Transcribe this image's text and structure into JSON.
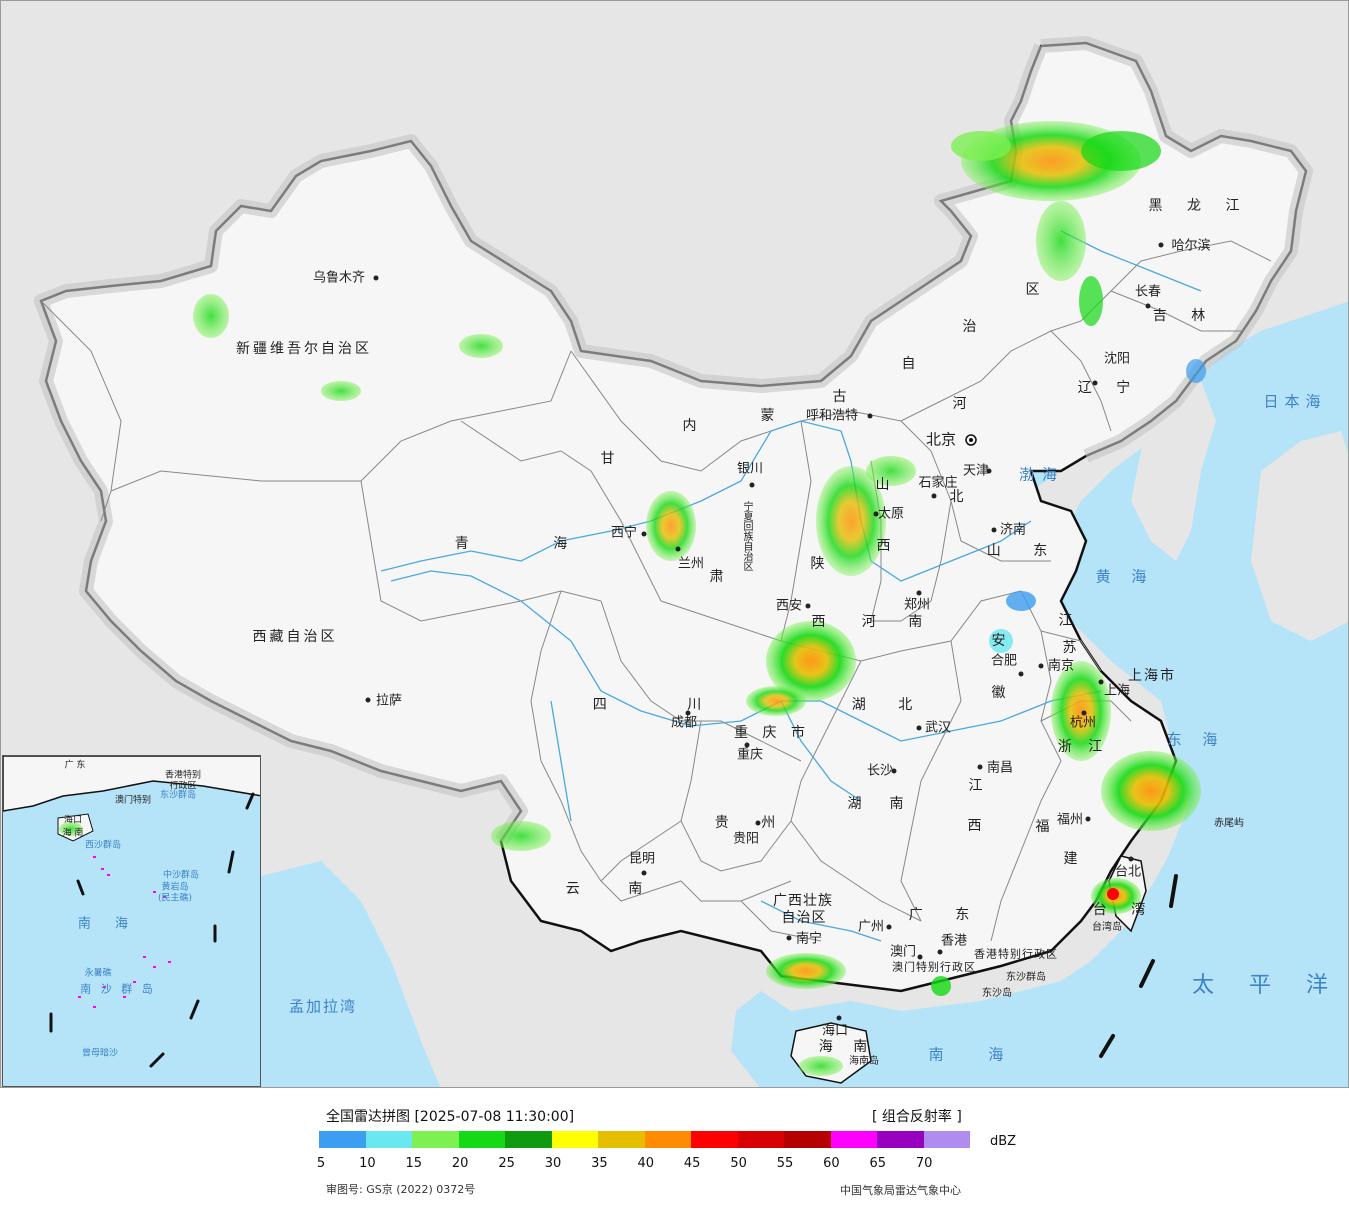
{
  "colors": {
    "foreign_land": "#e6e6e6",
    "china_land": "#f6f6f6",
    "sea": "#b5e3f8",
    "river": "#4aa8e0",
    "border": "#111111",
    "province_border": "#888888"
  },
  "map": {
    "provinces": {
      "xinjiang": "新疆维吾尔自治区",
      "xizang": "西藏自治区",
      "qinghai": "青 海",
      "gansu": "甘",
      "neimenggu_1": "内",
      "neimenggu_2": "蒙",
      "neimenggu_3": "古",
      "neimenggu_4": "自",
      "neimenggu_5": "治",
      "neimenggu_6": "区",
      "heilongjiang": "黑 龙 江",
      "jilin": "吉 林",
      "liaoning": "辽 宁",
      "hebei_1": "河",
      "hebei_2": "北",
      "shanxi_1": "山",
      "shanxi_2": "西",
      "shaanxi_1": "陕",
      "shaanxi_2": "西",
      "shandong": "山 东",
      "henan": "河 南",
      "jiangsu_1": "江",
      "jiangsu_2": "苏",
      "anhui_1": "安",
      "anhui_2": "徽",
      "hubei": "湖 北",
      "hunan_1": "湖",
      "hunan_2": "南",
      "sichuan": "四 川",
      "chongqing": "重 庆 市",
      "guizhou": "贵 州",
      "yunnan": "云 南",
      "guangxi_1": "广西壮族",
      "guangxi_2": "自治区",
      "guangdong": "广 东",
      "jiangxi_1": "江",
      "jiangxi_2": "西",
      "fujian_1": "福",
      "fujian_2": "建",
      "zhejiang": "浙 江",
      "shanghai": "上海市",
      "taiwan": "台 湾",
      "hainan": "海 南",
      "ningxia": "宁夏回族自治区",
      "ningxia_short": "宁",
      "hongkong": "香港特别行政区",
      "macau": "澳门特别行政区",
      "gansu_2": "肃"
    },
    "cities": {
      "urumqi": "乌鲁木齐",
      "lhasa": "拉萨",
      "xining": "西宁",
      "lanzhou": "兰州",
      "yinchuan": "银川",
      "hohhot": "呼和浩特",
      "beijing": "北京",
      "tianjin": "天津",
      "shijiazhuang": "石家庄",
      "taiyuan": "太原",
      "jinan": "济南",
      "zhengzhou": "郑州",
      "xian": "西安",
      "hefei": "合肥",
      "nanjing": "南京",
      "shanghai": "上海",
      "hangzhou": "杭州",
      "wuhan": "武汉",
      "chengdu": "成都",
      "chongqing": "重庆",
      "changsha": "长沙",
      "nanchang": "南昌",
      "fuzhou": "福州",
      "taipei": "台北",
      "guiyang": "贵阳",
      "kunming": "昆明",
      "nanning": "南宁",
      "guangzhou": "广州",
      "hongkong": "香港",
      "macau": "澳门",
      "haikou": "海口",
      "shenyang": "沈阳",
      "changchun": "长春",
      "harbin": "哈尔滨"
    },
    "seas": {
      "bohai": "渤海",
      "huanghai": "黄 海",
      "donghai": "东 海",
      "nanhai": "南 海",
      "taipingyang": "太 平 洋",
      "ribenhai": "日本海",
      "mengjialawan": "孟加拉湾"
    },
    "islands": {
      "taiwan_dao": "台湾岛",
      "hainan_dao": "海南岛",
      "chiweiyu": "赤尾屿",
      "dongsha_qundao": "东沙群岛",
      "dongsha_dao": "东沙岛"
    },
    "inset": {
      "nanhai": "南 海",
      "xisha": "西沙群岛",
      "zhongsha": "中沙群岛",
      "huangyan": "黄岩岛",
      "minzhu": "(民主礁)",
      "nansha": "南 沙 群 岛",
      "yongshu": "永暑礁",
      "zengmu": "曾母暗沙",
      "dongsha": "东沙群岛",
      "hainan": "海 南",
      "haikou": "海口",
      "hk": "香港特别",
      "hk2": "行政区",
      "macau": "澳门特别",
      "guangdong": "广 东"
    }
  },
  "legend": {
    "title": "全国雷达拼图 [2025-07-08 11:30:00]",
    "product": "[ 组合反射率 ]",
    "unit": "dBZ",
    "colors": [
      "#3c9ef0",
      "#6ae7f0",
      "#7df052",
      "#14d914",
      "#0e9c0e",
      "#ffff00",
      "#e6be00",
      "#ff8c00",
      "#ff0000",
      "#d80000",
      "#b40000",
      "#ff00ff",
      "#9800c0",
      "#ae8cf0"
    ],
    "ticks": [
      "5",
      "10",
      "15",
      "20",
      "25",
      "30",
      "35",
      "40",
      "45",
      "50",
      "55",
      "60",
      "65",
      "70"
    ],
    "approval": "审图号: GS京 (2022) 0372号",
    "credit": "中国气象局雷达气象中心"
  }
}
